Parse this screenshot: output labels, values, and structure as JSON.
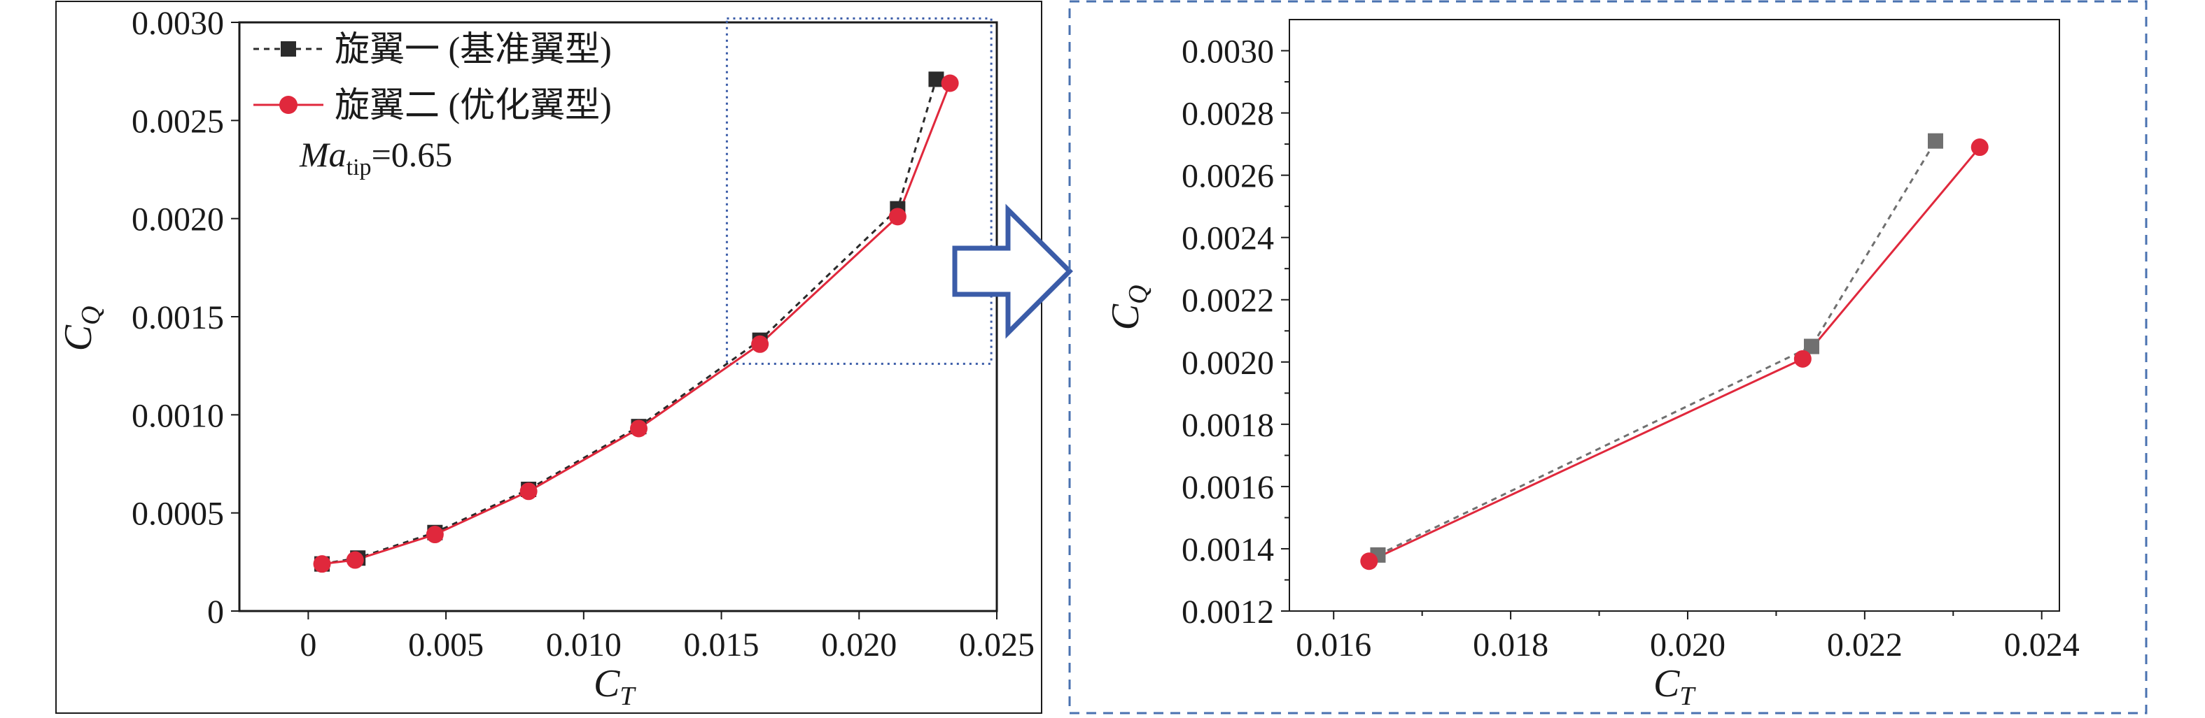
{
  "chart_data": [
    {
      "type": "line",
      "xlabel": "C",
      "xlabel_sub": "T",
      "ylabel": "C",
      "ylabel_sub": "Q",
      "xlim": [
        -0.0025,
        0.025
      ],
      "ylim": [
        0,
        0.003
      ],
      "x_ticks": [
        0,
        0.005,
        0.01,
        0.015,
        0.02,
        0.025
      ],
      "x_tick_labels": [
        "0",
        "0.005",
        "0.010",
        "0.015",
        "0.020",
        "0.025"
      ],
      "y_ticks": [
        0,
        0.0005,
        0.001,
        0.0015,
        0.002,
        0.0025,
        0.003
      ],
      "y_tick_labels": [
        "0",
        "0.0005",
        "0.0010",
        "0.0015",
        "0.0020",
        "0.0025",
        "0.0030"
      ],
      "grid": false,
      "legend_position": "top-left",
      "annotation": {
        "main": "Ma",
        "sub": "tip",
        "value": "=0.65"
      },
      "zoom_box": {
        "x": [
          0.0152,
          0.0248
        ],
        "y": [
          0.00126,
          0.00302
        ]
      },
      "series": [
        {
          "name": "旋翼一 (基准翼型)",
          "color": "#2b2b2b",
          "line": "dashed",
          "marker": "square",
          "x": [
            0.0005,
            0.0018,
            0.0046,
            0.008,
            0.012,
            0.0164,
            0.0214,
            0.0228
          ],
          "y": [
            0.00024,
            0.00027,
            0.0004,
            0.00062,
            0.00094,
            0.00138,
            0.00205,
            0.00271
          ]
        },
        {
          "name": "旋翼二 (优化翼型)",
          "color": "#e0283c",
          "line": "solid",
          "marker": "circle",
          "x": [
            0.0005,
            0.0017,
            0.0046,
            0.008,
            0.012,
            0.0164,
            0.0214,
            0.0233
          ],
          "y": [
            0.00024,
            0.00026,
            0.00039,
            0.00061,
            0.00093,
            0.00136,
            0.00201,
            0.00269
          ]
        }
      ]
    },
    {
      "type": "line",
      "xlabel": "C",
      "xlabel_sub": "T",
      "ylabel": "C",
      "ylabel_sub": "Q",
      "xlim": [
        0.0155,
        0.0242
      ],
      "ylim": [
        0.0012,
        0.0031
      ],
      "x_ticks": [
        0.016,
        0.018,
        0.02,
        0.022,
        0.024
      ],
      "x_tick_labels": [
        "0.016",
        "0.018",
        "0.020",
        "0.022",
        "0.024"
      ],
      "y_ticks": [
        0.0012,
        0.0014,
        0.0016,
        0.0018,
        0.002,
        0.0022,
        0.0024,
        0.0026,
        0.0028,
        0.003
      ],
      "y_tick_labels": [
        "0.0012",
        "0.0014",
        "0.0016",
        "0.0018",
        "0.0020",
        "0.0022",
        "0.0024",
        "0.0026",
        "0.0028",
        "0.0030"
      ],
      "grid": false,
      "series": [
        {
          "color": "#707070",
          "line": "dashed",
          "marker": "square",
          "x": [
            0.0165,
            0.0214,
            0.0228
          ],
          "y": [
            0.00138,
            0.00205,
            0.00271
          ]
        },
        {
          "color": "#e0283c",
          "line": "solid",
          "marker": "circle",
          "x": [
            0.0164,
            0.0213,
            0.0233
          ],
          "y": [
            0.00136,
            0.00201,
            0.00269
          ]
        }
      ]
    }
  ],
  "colors": {
    "frame": "#1a1a1a",
    "zoom_box": "#3b5ca8",
    "arrow": "#3b5ca8",
    "right_panel_border": "#4a72b0"
  }
}
